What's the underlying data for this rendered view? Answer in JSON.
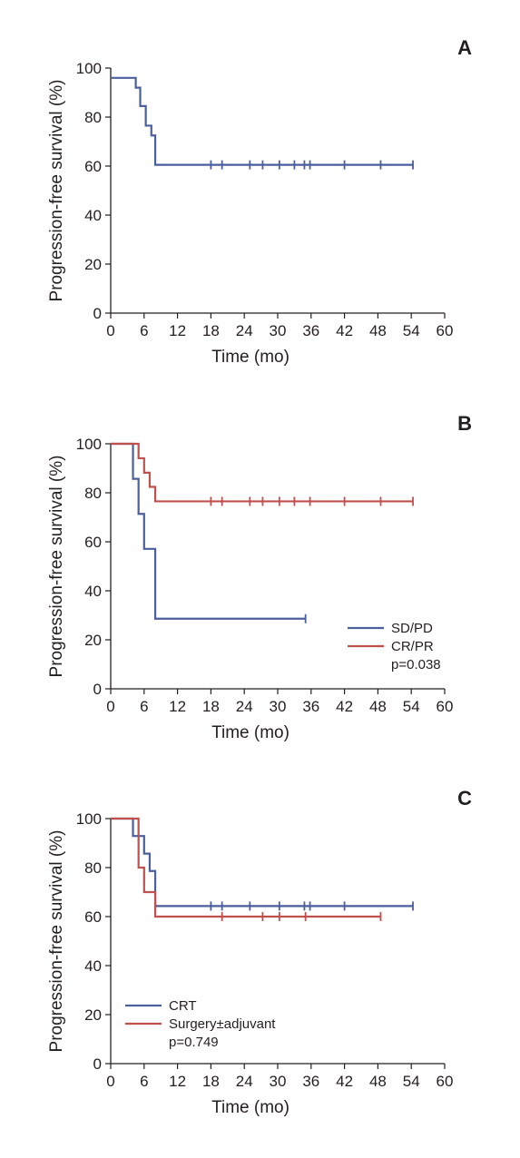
{
  "chart_data": [
    {
      "type": "line",
      "step": true,
      "panel": "A",
      "xlabel": "Time (mo)",
      "ylabel": "Progression-free survival (%)",
      "xlim": [
        0,
        60
      ],
      "ylim": [
        0,
        100
      ],
      "xticks": [
        0,
        6,
        12,
        18,
        24,
        30,
        36,
        42,
        48,
        54,
        60
      ],
      "yticks": [
        0,
        20,
        40,
        60,
        80,
        100
      ],
      "pvalue": "",
      "legend": "none",
      "series": [
        {
          "name": "",
          "color": "#4a5f9d",
          "steps": [
            [
              0,
              96
            ],
            [
              4.5,
              92
            ],
            [
              5.3,
              84.5
            ],
            [
              6.3,
              76.5
            ],
            [
              7.3,
              72.5
            ],
            [
              8,
              60.5
            ],
            [
              54.3,
              60.5
            ]
          ],
          "censored": [
            18,
            20,
            25,
            27.3,
            30.3,
            33,
            34.8,
            35.8,
            42,
            48.5,
            54.3
          ]
        }
      ]
    },
    {
      "type": "line",
      "step": true,
      "panel": "B",
      "xlabel": "Time (mo)",
      "ylabel": "Progression-free survival (%)",
      "xlim": [
        0,
        60
      ],
      "ylim": [
        0,
        100
      ],
      "xticks": [
        0,
        6,
        12,
        18,
        24,
        30,
        36,
        42,
        48,
        54,
        60
      ],
      "yticks": [
        0,
        20,
        40,
        60,
        80,
        100
      ],
      "pvalue": "p=0.038",
      "legend": "right",
      "series": [
        {
          "name": "SD/PD",
          "color": "#4a5f9d",
          "steps": [
            [
              0,
              100
            ],
            [
              4,
              85.7
            ],
            [
              5,
              71.4
            ],
            [
              6,
              57.1
            ],
            [
              8,
              28.6
            ],
            [
              35,
              28.6
            ]
          ],
          "censored": [
            35
          ]
        },
        {
          "name": "CR/PR",
          "color": "#c0504d",
          "steps": [
            [
              0,
              100
            ],
            [
              5,
              94.1
            ],
            [
              6,
              88.2
            ],
            [
              7,
              82.4
            ],
            [
              8,
              76.5
            ],
            [
              54.3,
              76.5
            ]
          ],
          "censored": [
            18,
            20,
            25,
            27.3,
            30.3,
            33,
            35.8,
            42,
            48.5,
            54.3
          ]
        }
      ]
    },
    {
      "type": "line",
      "step": true,
      "panel": "C",
      "xlabel": "Time (mo)",
      "ylabel": "Progression-free survival (%)",
      "xlim": [
        0,
        60
      ],
      "ylim": [
        0,
        100
      ],
      "xticks": [
        0,
        6,
        12,
        18,
        24,
        30,
        36,
        42,
        48,
        54,
        60
      ],
      "yticks": [
        0,
        20,
        40,
        60,
        80,
        100
      ],
      "pvalue": "p=0.749",
      "legend": "left",
      "series": [
        {
          "name": "CRT",
          "color": "#4a5f9d",
          "steps": [
            [
              0,
              100
            ],
            [
              4,
              92.9
            ],
            [
              6,
              85.7
            ],
            [
              7,
              78.6
            ],
            [
              8,
              64.3
            ],
            [
              54.3,
              64.3
            ]
          ],
          "censored": [
            18,
            20,
            25,
            30.3,
            34.8,
            35.8,
            42,
            54.3
          ]
        },
        {
          "name": "Surgery±adjuvant",
          "color": "#c0504d",
          "steps": [
            [
              0,
              100
            ],
            [
              5,
              80
            ],
            [
              6,
              70
            ],
            [
              8,
              60
            ],
            [
              48.5,
              60
            ]
          ],
          "censored": [
            20,
            27.3,
            30.3,
            35,
            48.5
          ]
        }
      ]
    }
  ]
}
